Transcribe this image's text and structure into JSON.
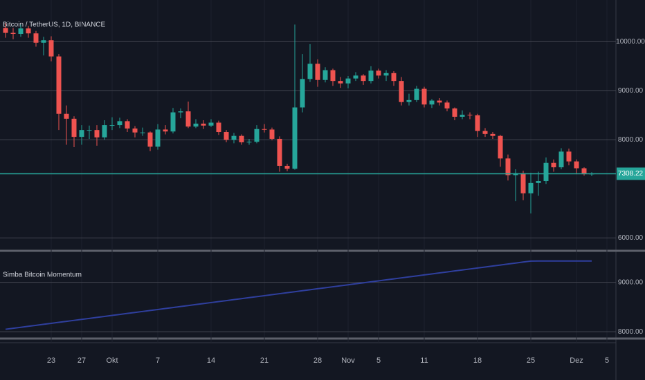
{
  "chart_data": [
    {
      "type": "candlestick",
      "title": "Bitcoin / TetherUS, 1D, BINANCE",
      "categories": [
        null,
        null,
        null,
        null,
        null,
        null,
        "23",
        null,
        null,
        null,
        "27",
        null,
        null,
        null,
        "Okt",
        null,
        null,
        null,
        null,
        null,
        "7",
        null,
        null,
        null,
        null,
        null,
        null,
        "14",
        null,
        null,
        null,
        null,
        null,
        null,
        "21",
        null,
        null,
        null,
        null,
        null,
        null,
        "28",
        null,
        null,
        null,
        "Nov",
        null,
        null,
        null,
        "5",
        null,
        null,
        null,
        null,
        null,
        "11",
        null,
        null,
        null,
        null,
        null,
        null,
        "18",
        null,
        null,
        null,
        null,
        null,
        null,
        "25",
        null,
        null,
        null,
        null,
        null,
        "Dez",
        null,
        null,
        null,
        "5"
      ],
      "open": [
        10280,
        10180,
        10160,
        10270,
        10170,
        9980,
        10030,
        9700,
        8530,
        8430,
        8060,
        8200,
        8200,
        8050,
        8300,
        8300,
        8380,
        8230,
        8150,
        8150,
        7860,
        8210,
        8170,
        8560,
        8580,
        8270,
        8330,
        8290,
        8350,
        8160,
        8000,
        8080,
        7950,
        7960,
        8220,
        8210,
        8020,
        7470,
        7410,
        8660,
        9240,
        9550,
        9220,
        9420,
        9200,
        9150,
        9250,
        9310,
        9200,
        9410,
        9310,
        9360,
        9200,
        8770,
        8810,
        9040,
        8720,
        8800,
        8760,
        8640,
        8470,
        8510,
        8500,
        8180,
        8120,
        8080,
        7620,
        7280,
        7320,
        6910,
        7120,
        7160,
        7530,
        7440,
        7760,
        7560,
        7420,
        7300,
        null,
        null
      ],
      "high": [
        10380,
        10280,
        10350,
        10320,
        10220,
        10100,
        10110,
        9750,
        8700,
        8480,
        8300,
        8290,
        8300,
        8400,
        8460,
        8450,
        8420,
        8280,
        8250,
        8170,
        8320,
        8300,
        8650,
        8640,
        8780,
        8420,
        8400,
        8420,
        8390,
        8200,
        8140,
        8110,
        8020,
        8300,
        8320,
        8250,
        8070,
        7510,
        10350,
        9750,
        9950,
        9640,
        9480,
        9450,
        9280,
        9300,
        9380,
        9340,
        9500,
        9450,
        9420,
        9400,
        9280,
        8940,
        9100,
        9080,
        8830,
        8850,
        8800,
        8660,
        8600,
        8560,
        8530,
        8240,
        8160,
        8100,
        7700,
        7400,
        7370,
        7330,
        7350,
        7640,
        7600,
        7830,
        7820,
        7600,
        7440,
        7340,
        null,
        null
      ],
      "low": [
        10080,
        10050,
        10100,
        10080,
        9900,
        9720,
        9600,
        8200,
        7900,
        7850,
        7900,
        8020,
        7880,
        8000,
        8200,
        8240,
        8160,
        8050,
        8080,
        7770,
        7800,
        8110,
        8130,
        8440,
        8240,
        8240,
        8220,
        8260,
        8100,
        7950,
        7930,
        7900,
        7900,
        7930,
        8150,
        7990,
        7350,
        7360,
        7390,
        8560,
        9180,
        9080,
        9170,
        9100,
        9060,
        9050,
        9200,
        9120,
        9150,
        9250,
        9200,
        9100,
        8700,
        8700,
        8770,
        8660,
        8650,
        8700,
        8580,
        8400,
        8420,
        8420,
        8060,
        8060,
        8020,
        7450,
        7170,
        6750,
        6770,
        6500,
        6860,
        7100,
        7350,
        7400,
        7480,
        7300,
        7270,
        7260,
        null,
        null
      ],
      "close": [
        10180,
        10160,
        10270,
        10170,
        9980,
        10030,
        9700,
        8530,
        8430,
        8060,
        8200,
        8200,
        8050,
        8300,
        8300,
        8380,
        8230,
        8150,
        8150,
        7860,
        8210,
        8170,
        8560,
        8580,
        8270,
        8330,
        8290,
        8350,
        8160,
        8000,
        8080,
        7950,
        7960,
        8220,
        8210,
        8020,
        7470,
        7410,
        8660,
        9240,
        9550,
        9220,
        9420,
        9200,
        9150,
        9250,
        9310,
        9200,
        9410,
        9310,
        9360,
        9200,
        8770,
        8810,
        9040,
        8720,
        8800,
        8760,
        8640,
        8470,
        8510,
        8500,
        8180,
        8120,
        8080,
        7620,
        7280,
        7320,
        6910,
        7120,
        7160,
        7530,
        7440,
        7760,
        7560,
        7420,
        7300,
        7310,
        null,
        null
      ],
      "up_color": "#26a69a",
      "down_color": "#ef5350",
      "ylim": [
        5780,
        10850
      ],
      "yticks": [
        {
          "value": 10000,
          "label": "10000.00"
        },
        {
          "value": 9000,
          "label": "9000.00"
        },
        {
          "value": 8000,
          "label": "8000.00"
        },
        {
          "value": 6000,
          "label": "6000.00"
        }
      ],
      "last_price": 7308.22,
      "last_price_color": "#26a69a"
    },
    {
      "type": "line",
      "title": "Simba Bitcoin Momentum",
      "color": "#2f3f9e",
      "values": [
        8050,
        8070,
        8090,
        8110,
        8130,
        8150,
        8170,
        8190,
        8210,
        8230,
        8250,
        8270,
        8290,
        8310,
        8330,
        8350,
        8370,
        8390,
        8410,
        8430,
        8450,
        8470,
        8490,
        8510,
        8530,
        8550,
        8570,
        8590,
        8610,
        8630,
        8650,
        8670,
        8690,
        8710,
        8730,
        8750,
        8770,
        8790,
        8810,
        8830,
        8850,
        8870,
        8890,
        8910,
        8930,
        8950,
        8970,
        8990,
        9010,
        9030,
        9050,
        9070,
        9090,
        9110,
        9130,
        9150,
        9170,
        9190,
        9210,
        9230,
        9250,
        9270,
        9290,
        9310,
        9330,
        9350,
        9370,
        9390,
        9410,
        9430,
        9432,
        9432,
        9432,
        9432,
        9432,
        9432,
        9432,
        9432,
        null,
        null
      ],
      "ylim": [
        7890,
        9610
      ],
      "yticks": [
        {
          "value": 9000,
          "label": "9000.00"
        },
        {
          "value": 8000,
          "label": "8000.00"
        }
      ]
    }
  ]
}
